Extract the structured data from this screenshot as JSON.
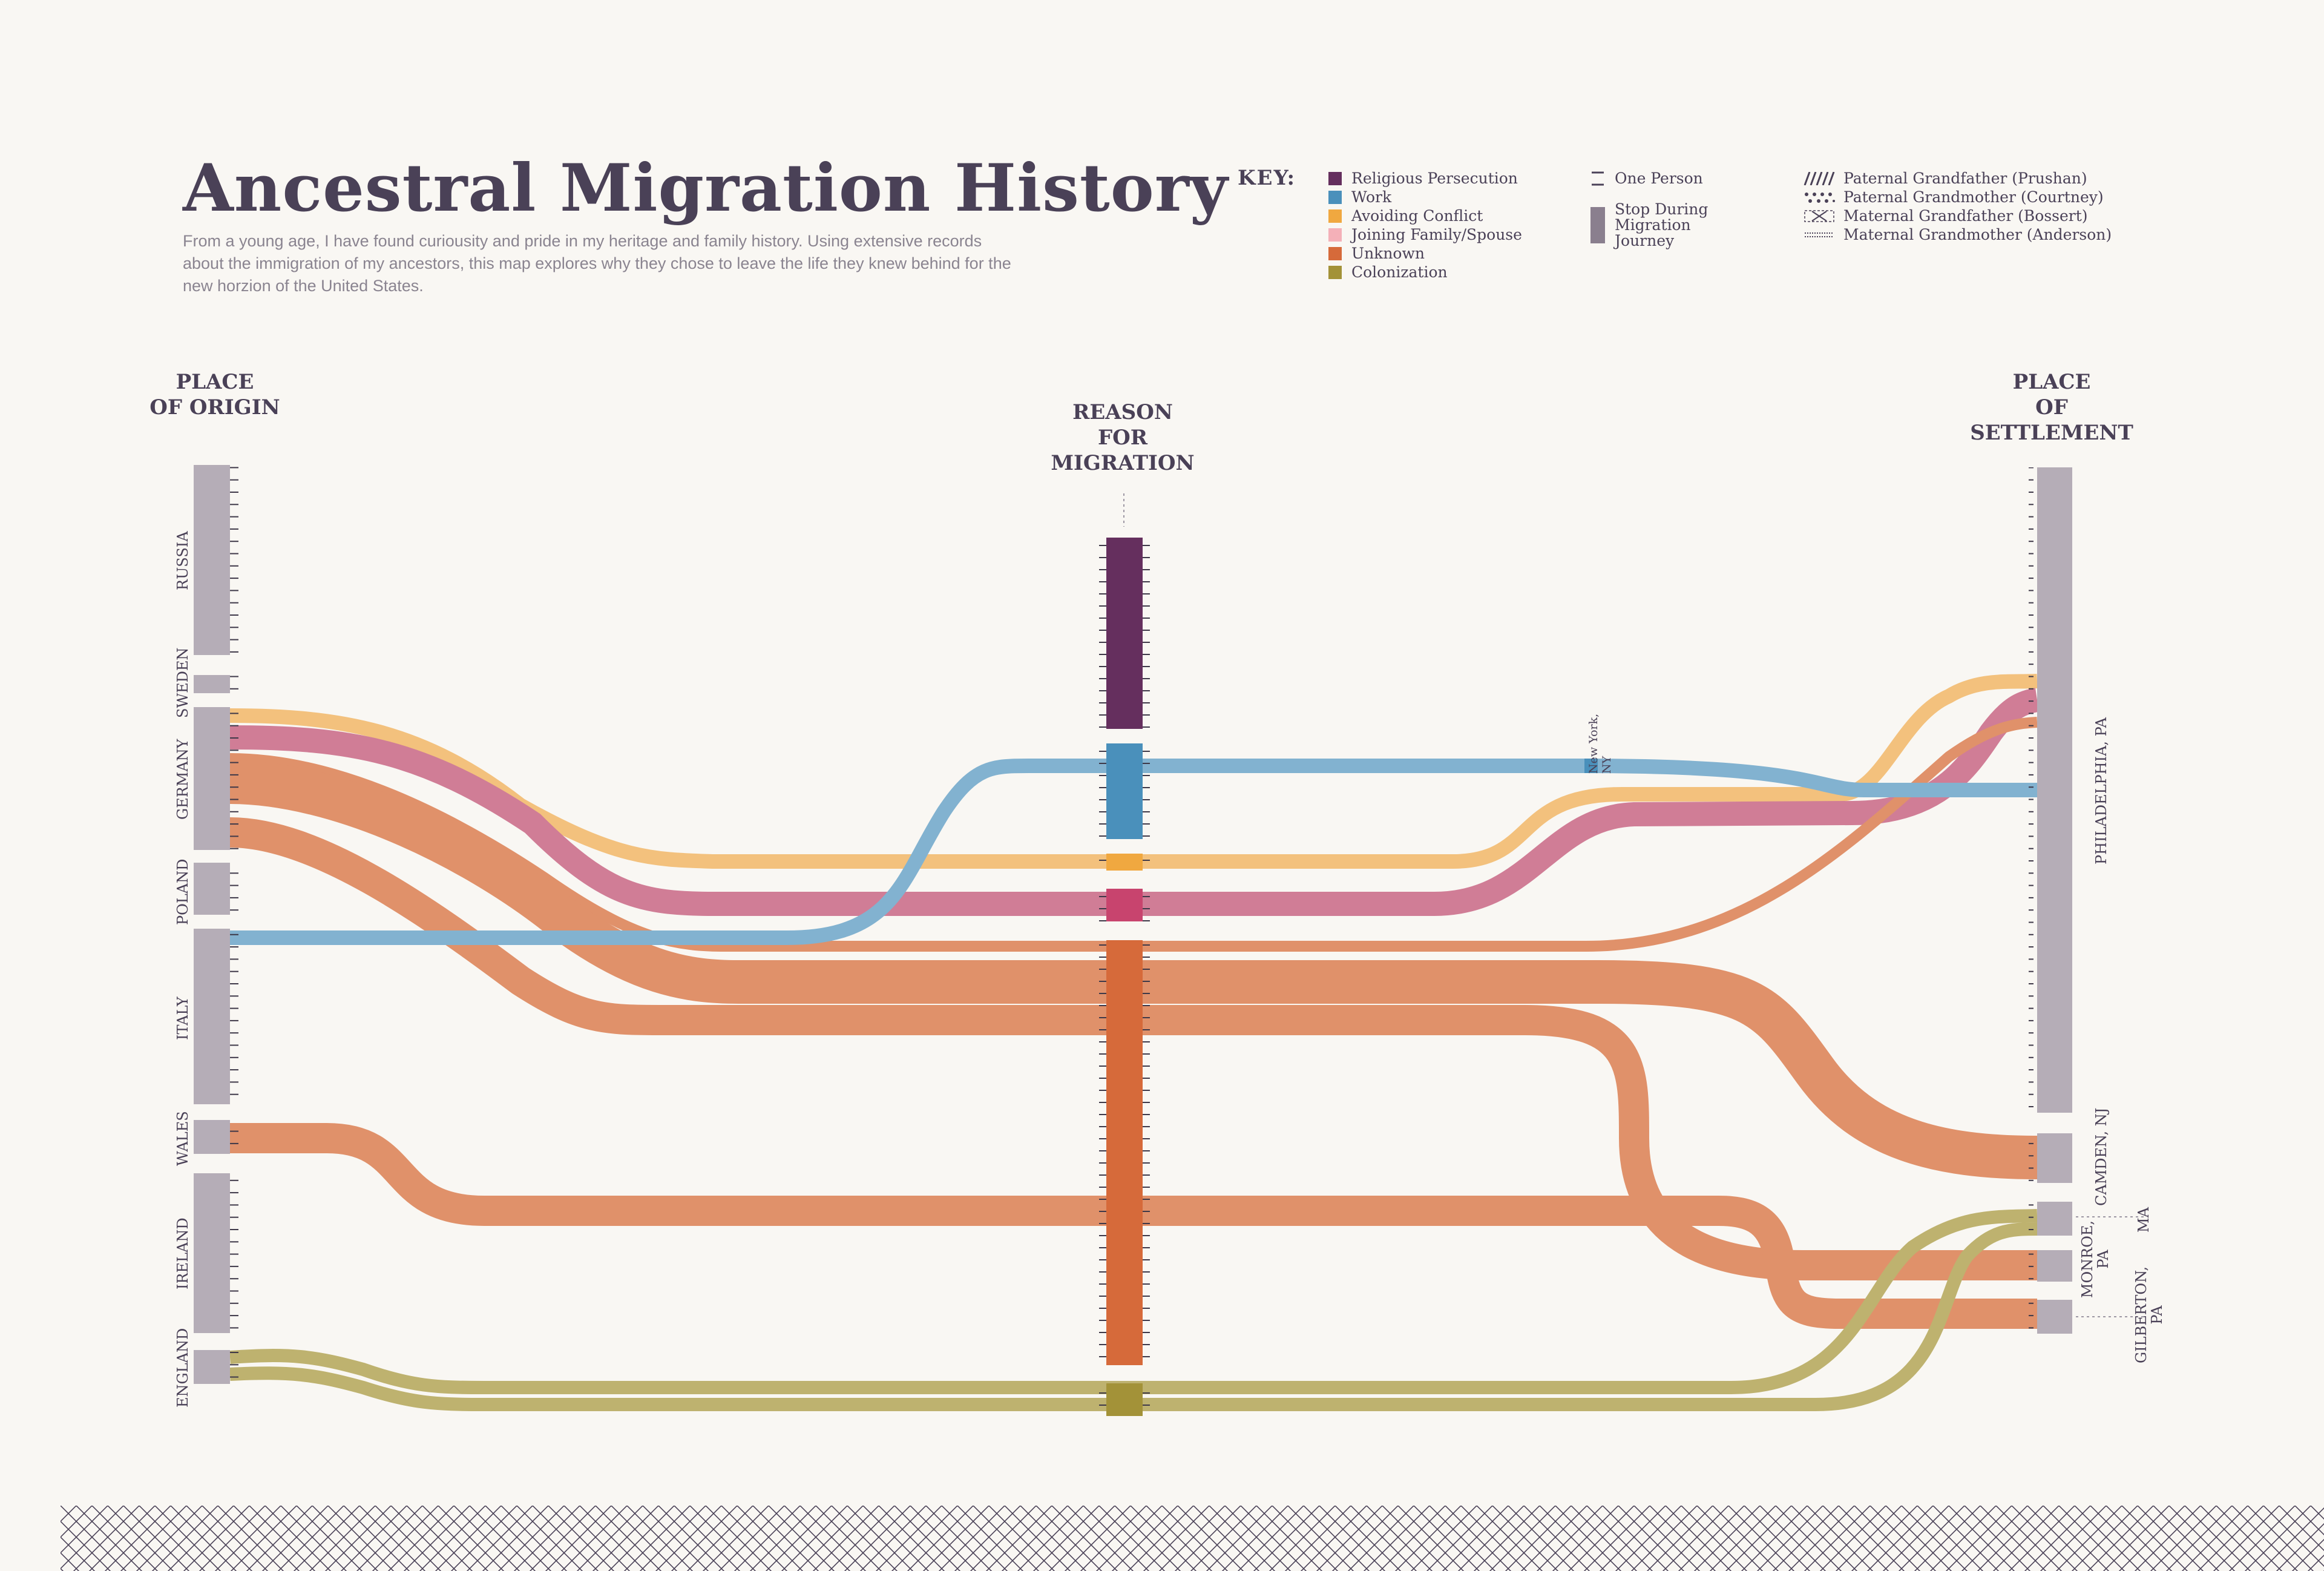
{
  "header": {
    "title": "Ancestral Migration History",
    "subtitle": "From a young age, I have found curiousity and pride in my heritage and family history. Using extensive records about the immigration of my ancestors, this map explores why they chose to leave the life they knew behind for the new horzion of the United States."
  },
  "key": {
    "label": "KEY:",
    "reasons": [
      {
        "label": "Religious Persecution",
        "color": "#652f5e"
      },
      {
        "label": "Work",
        "color": "#4a90bb"
      },
      {
        "label": "Avoiding Conflict",
        "color": "#f0a840"
      },
      {
        "label": "Joining Family/Spouse",
        "color": "#f4b0b8"
      },
      {
        "label": "Unknown",
        "color": "#d66a3a"
      },
      {
        "label": "Colonization",
        "color": "#a39238"
      }
    ],
    "one_person": "One Person",
    "stop": "Stop During Migration Journey",
    "lineages": [
      {
        "label": "Paternal Grandfather (Prushan)",
        "icon": "diagonal-hatch-icon"
      },
      {
        "label": "Paternal Grandmother (Courtney)",
        "icon": "dots-icon"
      },
      {
        "label": "Maternal Grandfather (Bossert)",
        "icon": "cross-box-icon"
      },
      {
        "label": "Maternal Grandmother (Anderson)",
        "icon": "dotted-line-icon"
      }
    ]
  },
  "columns": {
    "origin": [
      "PLACE",
      "OF ORIGIN"
    ],
    "reason": [
      "REASON",
      "FOR",
      "MIGRATION"
    ],
    "settlement": [
      "PLACE",
      "OF",
      "SETTLEMENT"
    ]
  },
  "origins": [
    {
      "label": "RUSSIA"
    },
    {
      "label": "SWEDEN"
    },
    {
      "label": "GERMANY"
    },
    {
      "label": "POLAND"
    },
    {
      "label": "ITALY"
    },
    {
      "label": "WALES"
    },
    {
      "label": "IRELAND"
    },
    {
      "label": "ENGLAND"
    }
  ],
  "settlements": [
    {
      "label": "PHILADELPHIA, PA"
    },
    {
      "label": "CAMDEN, NJ"
    },
    {
      "label": "MONROE, PA"
    },
    {
      "label": "MA"
    },
    {
      "label": "GILBERTON, PA"
    }
  ],
  "stops": [
    {
      "label": "New York, NY"
    }
  ],
  "colors": {
    "bar": "#b5adb7",
    "flow_work": "#7fb0cf",
    "flow_conflict": "#f3c07a",
    "flow_family": "#cf7a94",
    "flow_unknown": "#e08e66",
    "flow_colonization": "#bdb06b",
    "background": "#f9f7f3",
    "text": "#4a4157"
  }
}
